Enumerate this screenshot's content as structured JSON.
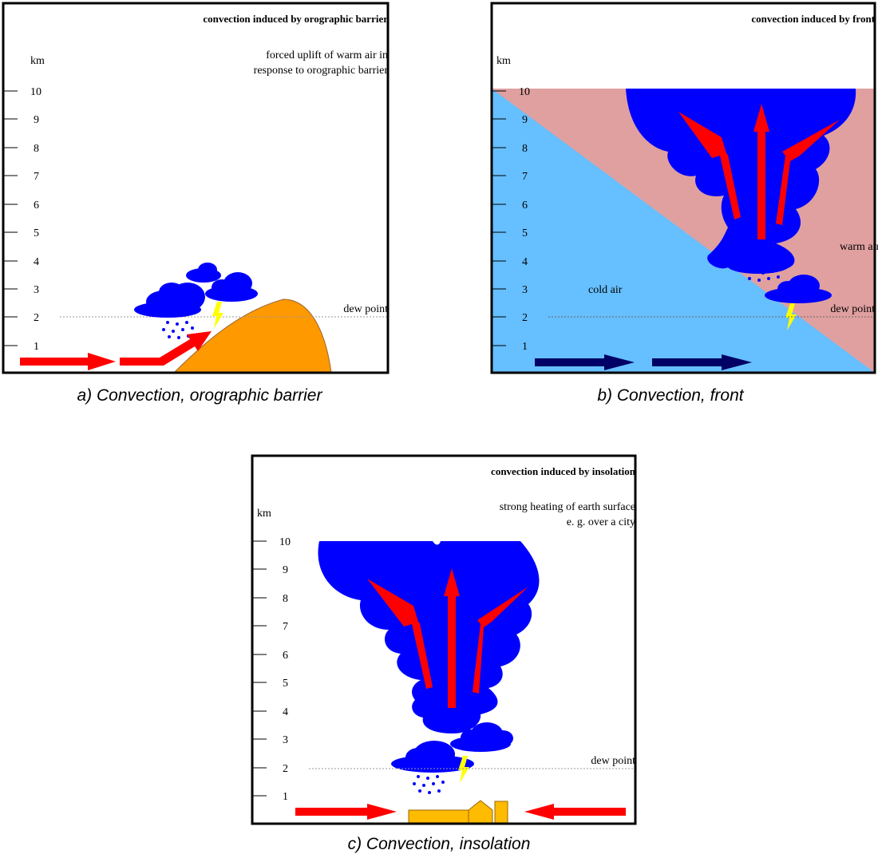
{
  "axis_unit": "km",
  "axis_ticks": [
    "10",
    "9",
    "8",
    "7",
    "6",
    "5",
    "4",
    "3",
    "2",
    "1"
  ],
  "panels": {
    "a": {
      "title": "convection induced by orographic barrier",
      "note_line1": "forced uplift of warm air in",
      "note_line2": "response to orographic barrier",
      "dew_point": "dew point",
      "caption": "a) Convection, orographic barrier"
    },
    "b": {
      "title": "convection induced by front",
      "warm_label": "warm air",
      "cold_label": "cold air",
      "dew_point": "dew point",
      "caption": "b) Convection, front"
    },
    "c": {
      "title": "convection induced by insolation",
      "note_line1": "strong heating of earth surface",
      "note_line2": "e. g. over a city",
      "dew_point": "dew point",
      "caption": "c) Convection, insolation"
    }
  },
  "colors": {
    "cloud": "#0000ff",
    "arrow": "#ff0000",
    "cold_arrow": "#000066",
    "mountain": "#ff9900",
    "warm_air": "#e0a0a0",
    "cold_air": "#66bfff",
    "city": "#ffbb00",
    "lightning": "#ffff00"
  }
}
